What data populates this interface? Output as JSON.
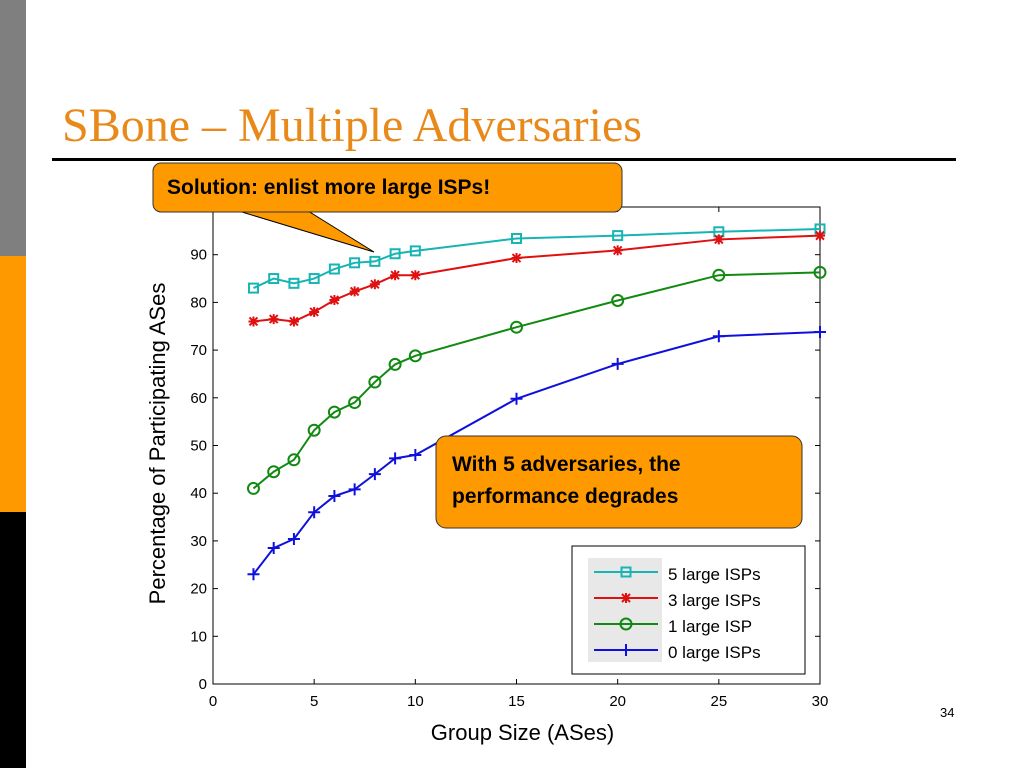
{
  "slide": {
    "title": "SBone – Multiple Adversaries",
    "page_number": "34",
    "callout_top": "Solution: enlist more large ISPs!",
    "callout_bottom_line1": "With 5 adversaries, the",
    "callout_bottom_line2": "performance degrades"
  },
  "colors": {
    "title": "#e8891a",
    "callout_fill": "#ff9900",
    "series_5": "#17b4b4",
    "series_3": "#e01010",
    "series_1": "#128a12",
    "series_0": "#1010dd"
  },
  "chart_data": {
    "type": "line",
    "title": "",
    "xlabel": "Group Size (ASes)",
    "ylabel": "Percentage of Participating ASes",
    "xlim": [
      0,
      30
    ],
    "ylim": [
      0,
      100
    ],
    "xticks": [
      0,
      5,
      10,
      15,
      20,
      25,
      30
    ],
    "yticks": [
      0,
      10,
      20,
      30,
      40,
      50,
      60,
      70,
      80,
      90
    ],
    "x": [
      2,
      3,
      4,
      5,
      6,
      7,
      8,
      9,
      10,
      15,
      20,
      25,
      30
    ],
    "series": [
      {
        "name": "5 large ISPs",
        "marker": "square",
        "values": [
          83,
          85,
          84,
          85,
          87,
          88.3,
          88.6,
          90.2,
          90.8,
          93.4,
          94,
          94.8,
          95.4
        ]
      },
      {
        "name": "3 large ISPs",
        "marker": "star",
        "values": [
          76,
          76.5,
          76,
          78,
          80.5,
          82.3,
          83.8,
          85.7,
          85.7,
          89.3,
          90.9,
          93.2,
          94
        ]
      },
      {
        "name": "1 large ISP",
        "marker": "circle",
        "values": [
          41,
          44.5,
          47,
          53.2,
          57,
          59,
          63.3,
          67,
          68.8,
          74.8,
          80.4,
          85.7,
          86.3
        ]
      },
      {
        "name": "0 large ISPs",
        "marker": "plus",
        "values": [
          23,
          28.5,
          30.4,
          36,
          39.4,
          40.8,
          44,
          47.3,
          48,
          59.8,
          67.1,
          72.9,
          73.8
        ]
      }
    ],
    "legend": "bottom-right"
  }
}
